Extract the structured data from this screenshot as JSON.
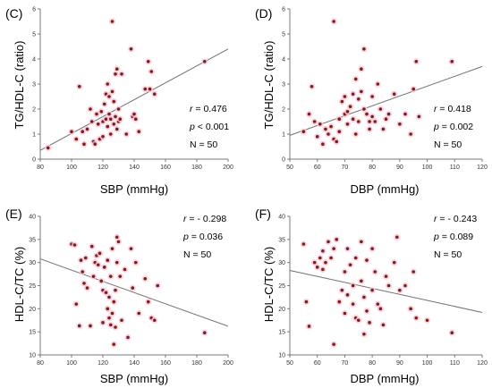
{
  "colors": {
    "point": "#8b1a10",
    "point_halo": "#f3c8dc",
    "axis": "#7a7a7a",
    "fit_line": "#707070"
  },
  "chart_data": [
    {
      "panel_label": "(C)",
      "type": "scatter",
      "xlabel": "SBP (mmHg)",
      "ylabel": "TG/HDL-C (ratio)",
      "xlim": [
        80,
        200
      ],
      "ylim": [
        0,
        6
      ],
      "xticks": [
        80,
        100,
        120,
        140,
        160,
        180,
        200
      ],
      "yticks": [
        0,
        1,
        2,
        3,
        4,
        5,
        6
      ],
      "stats": {
        "r_key": "r",
        "r_value": "=  0.476",
        "p_key": "p",
        "p_value": "< 0.001",
        "n_text": "N = 50"
      },
      "fit_line": {
        "x": [
          80,
          200
        ],
        "y": [
          0.35,
          4.4
        ]
      },
      "points": [
        [
          85,
          0.45
        ],
        [
          100,
          1.1
        ],
        [
          103,
          0.8
        ],
        [
          105,
          2.9
        ],
        [
          107,
          1.1
        ],
        [
          108,
          0.6
        ],
        [
          110,
          1.2
        ],
        [
          112,
          2.0
        ],
        [
          113,
          1.5
        ],
        [
          114,
          0.7
        ],
        [
          115,
          0.6
        ],
        [
          116,
          1.8
        ],
        [
          117,
          1.4
        ],
        [
          118,
          0.8
        ],
        [
          119,
          1.9
        ],
        [
          120,
          1.5
        ],
        [
          120,
          0.9
        ],
        [
          121,
          2.2
        ],
        [
          122,
          1.6
        ],
        [
          122,
          2.6
        ],
        [
          123,
          1.3
        ],
        [
          123,
          3.0
        ],
        [
          124,
          2.5
        ],
        [
          124,
          1.8
        ],
        [
          125,
          1.0
        ],
        [
          125,
          1.6
        ],
        [
          126,
          2.7
        ],
        [
          126,
          5.5
        ],
        [
          127,
          1.4
        ],
        [
          127,
          2.3
        ],
        [
          128,
          3.4
        ],
        [
          128,
          1.7
        ],
        [
          129,
          1.2
        ],
        [
          129,
          3.6
        ],
        [
          130,
          1.5
        ],
        [
          130,
          2.0
        ],
        [
          131,
          1.6
        ],
        [
          132,
          3.4
        ],
        [
          135,
          1.0
        ],
        [
          138,
          4.4
        ],
        [
          139,
          1.7
        ],
        [
          140,
          1.8
        ],
        [
          141,
          1.6
        ],
        [
          143,
          1.1
        ],
        [
          147,
          2.8
        ],
        [
          149,
          3.9
        ],
        [
          150,
          2.8
        ],
        [
          151,
          3.5
        ],
        [
          153,
          2.6
        ],
        [
          185,
          3.9
        ]
      ]
    },
    {
      "panel_label": "(D)",
      "type": "scatter",
      "xlabel": "DBP (mmHg)",
      "ylabel": "TG/HDL-C (ratio)",
      "xlim": [
        50,
        120
      ],
      "ylim": [
        0,
        6
      ],
      "xticks": [
        50,
        60,
        70,
        80,
        90,
        100,
        110,
        120
      ],
      "yticks": [
        0,
        1,
        2,
        3,
        4,
        5,
        6
      ],
      "stats": {
        "r_key": "r",
        "r_value": "= 0.418",
        "p_key": "p",
        "p_value": "= 0.002",
        "n_text": "N = 50"
      },
      "fit_line": {
        "x": [
          50,
          120
        ],
        "y": [
          0.95,
          3.7
        ]
      },
      "points": [
        [
          55,
          1.1
        ],
        [
          57,
          1.8
        ],
        [
          58,
          2.9
        ],
        [
          59,
          1.5
        ],
        [
          60,
          0.9
        ],
        [
          61,
          1.4
        ],
        [
          62,
          0.6
        ],
        [
          63,
          1.2
        ],
        [
          64,
          1.0
        ],
        [
          65,
          1.3
        ],
        [
          66,
          0.8
        ],
        [
          66,
          5.5
        ],
        [
          67,
          0.7
        ],
        [
          68,
          1.1
        ],
        [
          68,
          1.6
        ],
        [
          69,
          2.3
        ],
        [
          70,
          1.8
        ],
        [
          70,
          2.5
        ],
        [
          71,
          1.9
        ],
        [
          71,
          1.4
        ],
        [
          72,
          2.1
        ],
        [
          73,
          1.6
        ],
        [
          73,
          2.6
        ],
        [
          74,
          3.2
        ],
        [
          74,
          1.0
        ],
        [
          75,
          2.4
        ],
        [
          75,
          1.5
        ],
        [
          76,
          3.6
        ],
        [
          76,
          2.7
        ],
        [
          77,
          4.4
        ],
        [
          77,
          2.0
        ],
        [
          78,
          1.8
        ],
        [
          79,
          1.2
        ],
        [
          79,
          1.5
        ],
        [
          80,
          2.5
        ],
        [
          80,
          1.7
        ],
        [
          81,
          1.5
        ],
        [
          82,
          3.0
        ],
        [
          83,
          2.0
        ],
        [
          84,
          1.2
        ],
        [
          85,
          1.6
        ],
        [
          86,
          1.8
        ],
        [
          88,
          2.6
        ],
        [
          90,
          1.4
        ],
        [
          92,
          1.8
        ],
        [
          94,
          1.0
        ],
        [
          95,
          2.8
        ],
        [
          96,
          3.9
        ],
        [
          97,
          1.7
        ],
        [
          109,
          3.9
        ]
      ]
    },
    {
      "panel_label": "(E)",
      "type": "scatter",
      "xlabel": "SBP (mmHg)",
      "ylabel": "HDL-C/TC (%)",
      "xlim": [
        80,
        200
      ],
      "ylim": [
        10,
        40
      ],
      "xticks": [
        80,
        100,
        120,
        140,
        160,
        180,
        200
      ],
      "yticks": [
        10,
        15,
        20,
        25,
        30,
        35,
        40
      ],
      "stats": {
        "r_key": "r",
        "r_value": "= - 0.298",
        "p_key": "p",
        "p_value": "= 0.036",
        "n_text": "N = 50"
      },
      "fit_line": {
        "x": [
          80,
          200
        ],
        "y": [
          30.8,
          16.2
        ]
      },
      "points": [
        [
          100,
          34
        ],
        [
          102,
          33.8
        ],
        [
          103,
          21
        ],
        [
          105,
          16.3
        ],
        [
          106,
          30.5
        ],
        [
          107,
          28
        ],
        [
          108,
          25.5
        ],
        [
          109,
          31
        ],
        [
          110,
          24.5
        ],
        [
          112,
          16.3
        ],
        [
          113,
          33.5
        ],
        [
          114,
          27
        ],
        [
          115,
          30
        ],
        [
          116,
          31.5
        ],
        [
          117,
          29.5
        ],
        [
          118,
          32
        ],
        [
          119,
          26
        ],
        [
          120,
          17
        ],
        [
          120,
          24
        ],
        [
          121,
          29
        ],
        [
          122,
          23.5
        ],
        [
          123,
          20
        ],
        [
          123,
          30.5
        ],
        [
          124,
          18
        ],
        [
          124,
          22.5
        ],
        [
          125,
          16.5
        ],
        [
          125,
          27
        ],
        [
          126,
          33
        ],
        [
          126,
          19
        ],
        [
          127,
          12.3
        ],
        [
          127,
          21.5
        ],
        [
          128,
          24
        ],
        [
          128,
          16
        ],
        [
          129,
          30
        ],
        [
          129,
          35.5
        ],
        [
          130,
          34.5
        ],
        [
          131,
          27
        ],
        [
          132,
          17.5
        ],
        [
          134,
          28.5
        ],
        [
          136,
          13.8
        ],
        [
          138,
          33
        ],
        [
          139,
          24.5
        ],
        [
          141,
          30
        ],
        [
          143,
          19
        ],
        [
          147,
          26.5
        ],
        [
          149,
          21.5
        ],
        [
          151,
          18
        ],
        [
          153,
          17.5
        ],
        [
          155,
          25
        ],
        [
          185,
          14.8
        ]
      ]
    },
    {
      "panel_label": "(F)",
      "type": "scatter",
      "xlabel": "DBP (mmHg)",
      "ylabel": "HDL-C/TC (%)",
      "xlim": [
        50,
        120
      ],
      "ylim": [
        10,
        40
      ],
      "xticks": [
        50,
        60,
        70,
        80,
        90,
        100,
        110,
        120
      ],
      "yticks": [
        10,
        15,
        20,
        25,
        30,
        35,
        40
      ],
      "stats": {
        "r_key": "r",
        "r_value": "= - 0.243",
        "p_key": "p",
        "p_value": "= 0.089",
        "n_text": "N = 50"
      },
      "fit_line": {
        "x": [
          50,
          120
        ],
        "y": [
          28.3,
          19.2
        ]
      },
      "points": [
        [
          55,
          34
        ],
        [
          56,
          21.5
        ],
        [
          57,
          16.2
        ],
        [
          59,
          30
        ],
        [
          60,
          29
        ],
        [
          61,
          31
        ],
        [
          62,
          32.5
        ],
        [
          62,
          28.5
        ],
        [
          63,
          30
        ],
        [
          64,
          34.5
        ],
        [
          65,
          31
        ],
        [
          66,
          12.3
        ],
        [
          66,
          33
        ],
        [
          67,
          35
        ],
        [
          68,
          21.5
        ],
        [
          69,
          24
        ],
        [
          70,
          28
        ],
        [
          70,
          19
        ],
        [
          71,
          33
        ],
        [
          71,
          23
        ],
        [
          72,
          29.5
        ],
        [
          73,
          25
        ],
        [
          73,
          21
        ],
        [
          74,
          18
        ],
        [
          74,
          31
        ],
        [
          75,
          17.5
        ],
        [
          76,
          34.5
        ],
        [
          76,
          26
        ],
        [
          77,
          22.5
        ],
        [
          77,
          14.5
        ],
        [
          78,
          30.5
        ],
        [
          78,
          19.5
        ],
        [
          79,
          17
        ],
        [
          80,
          33
        ],
        [
          80,
          24
        ],
        [
          81,
          28
        ],
        [
          82,
          21
        ],
        [
          83,
          20
        ],
        [
          84,
          16.5
        ],
        [
          85,
          27
        ],
        [
          86,
          25
        ],
        [
          88,
          30
        ],
        [
          89,
          35.5
        ],
        [
          90,
          24
        ],
        [
          92,
          25
        ],
        [
          94,
          20
        ],
        [
          95,
          28
        ],
        [
          96,
          18
        ],
        [
          100,
          17.5
        ],
        [
          109,
          14.8
        ]
      ]
    }
  ]
}
